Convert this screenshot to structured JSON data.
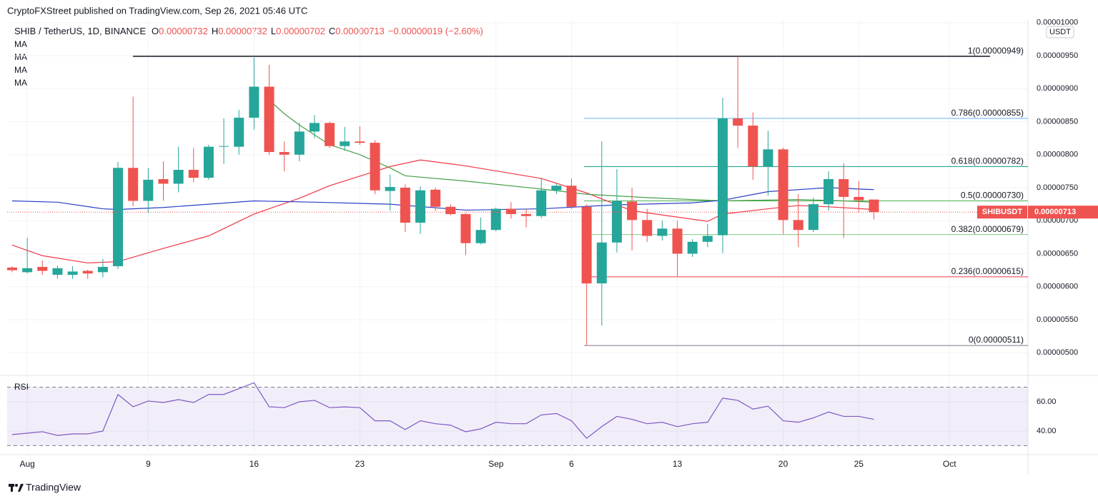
{
  "header": {
    "publisher": "CryptoFXStreet published on TradingView.com, Sep 26, 2021 05:46 UTC",
    "symbol": "SHIB / TetherUS, 1D, BINANCE",
    "ohlc_keys": [
      "O",
      "H",
      "L",
      "C"
    ],
    "change": "−0.00000019 (−2.60%)"
  },
  "indicators": [
    "MA",
    "MA",
    "MA",
    "MA"
  ],
  "chart_data": [
    {
      "type": "candlestick",
      "y_unit": "USDT",
      "symbol_tag": "SHIBUSDT",
      "up_color": "#26a69a",
      "down_color": "#ef5350",
      "grid": true,
      "xlim": [
        -0.33,
        67.19
      ],
      "xticks": [
        {
          "value": 1,
          "label": "Aug"
        },
        9,
        16,
        23,
        {
          "value": 32,
          "label": "Sep"
        },
        {
          "value": 37,
          "label": "6"
        },
        {
          "value": 44,
          "label": "13"
        },
        {
          "value": 51,
          "label": "20"
        },
        {
          "value": 56,
          "label": "25"
        },
        {
          "value": 62,
          "label": "Oct"
        }
      ],
      "ylim": [
        4.7e-06,
        1.004e-05
      ],
      "yticks": [
        {
          "value": 5e-06,
          "label": "0.00000500"
        },
        {
          "value": 5.5e-06,
          "label": "0.00000550"
        },
        {
          "value": 6e-06,
          "label": "0.00000600"
        },
        {
          "value": 6.5e-06,
          "label": "0.00000650"
        },
        {
          "value": 7e-06,
          "label": "0.00000700"
        },
        {
          "value": 7.5e-06,
          "label": "0.00000750"
        },
        {
          "value": 8e-06,
          "label": "0.00000800"
        },
        {
          "value": 8.5e-06,
          "label": "0.00000850"
        },
        {
          "value": 9e-06,
          "label": "0.00000900"
        },
        {
          "value": 9.5e-06,
          "label": "0.00000950"
        },
        {
          "value": 1e-05,
          "label": "0.00001000"
        }
      ],
      "open": [
        6.29e-06,
        6.22e-06,
        6.3e-06,
        6.18e-06,
        6.18e-06,
        6.24e-06,
        6.22e-06,
        6.31e-06,
        7.8e-06,
        7.3e-06,
        7.63e-06,
        7.56e-06,
        7.77e-06,
        7.65e-06,
        8.12e-06,
        8.12e-06,
        8.56e-06,
        9.03e-06,
        8.04e-06,
        8e-06,
        8.35e-06,
        8.48e-06,
        8.13e-06,
        8.2e-06,
        8.18e-06,
        7.45e-06,
        7.5e-06,
        6.97e-06,
        7.47e-06,
        7.21e-06,
        7.1e-06,
        6.66e-06,
        6.86e-06,
        7.18e-06,
        7.1e-06,
        7.07e-06,
        7.46e-06,
        7.53e-06,
        7.21e-06,
        6.05e-06,
        6.67e-06,
        7.29e-06,
        7.01e-06,
        6.77e-06,
        6.88e-06,
        6.5e-06,
        6.68e-06,
        6.78e-06,
        8.55e-06,
        8.44e-06,
        7.82e-06,
        8.08e-06,
        7.01e-06,
        6.86e-06,
        7.25e-06,
        7.63e-06,
        7.36e-06,
        7.32e-06
      ],
      "high": [
        6.31e-06,
        6.74e-06,
        6.4e-06,
        6.32e-06,
        6.31e-06,
        6.26e-06,
        6.42e-06,
        7.89e-06,
        8.88e-06,
        7.8e-06,
        7.9e-06,
        8.12e-06,
        8.1e-06,
        8.15e-06,
        8.55e-06,
        8.68e-06,
        9.47e-06,
        9.36e-06,
        8.2e-06,
        8.48e-06,
        8.6e-06,
        8.5e-06,
        8.42e-06,
        8.43e-06,
        8.22e-06,
        7.7e-06,
        7.55e-06,
        7.52e-06,
        7.5e-06,
        7.25e-06,
        7.12e-06,
        7.05e-06,
        7.2e-06,
        7.28e-06,
        7.18e-06,
        7.65e-06,
        7.56e-06,
        7.64e-06,
        7.25e-06,
        8.2e-06,
        7.78e-06,
        7.5e-06,
        7.18e-06,
        7e-06,
        7e-06,
        6.72e-06,
        6.95e-06,
        8.86e-06,
        9.49e-06,
        8.64e-06,
        8.36e-06,
        8.11e-06,
        7.4e-06,
        7.35e-06,
        7.75e-06,
        7.87e-06,
        7.6e-06,
        7.32e-06
      ],
      "low": [
        6.22e-06,
        6.2e-06,
        6.18e-06,
        6.12e-06,
        6.12e-06,
        6.12e-06,
        6.14e-06,
        6.27e-06,
        7.22e-06,
        7.12e-06,
        7.3e-06,
        7.43e-06,
        7.58e-06,
        7.62e-06,
        7.86e-06,
        8e-06,
        8.38e-06,
        8e-06,
        7.75e-06,
        7.9e-06,
        8.25e-06,
        8.1e-06,
        8.06e-06,
        8.15e-06,
        7.4e-06,
        7.15e-06,
        6.83e-06,
        6.8e-06,
        7.15e-06,
        7.08e-06,
        6.48e-06,
        6.64e-06,
        6.84e-06,
        7.03e-06,
        6.9e-06,
        7.04e-06,
        7.4e-06,
        7.18e-06,
        5.11e-06,
        5.41e-06,
        6.52e-06,
        6.55e-06,
        6.68e-06,
        6.7e-06,
        6.15e-06,
        6.45e-06,
        6.6e-06,
        6.51e-06,
        8.1e-06,
        7.62e-06,
        7.38e-06,
        6.8e-06,
        6.6e-06,
        6.83e-06,
        7.15e-06,
        6.74e-06,
        7.12e-06,
        7.02e-06
      ],
      "close": [
        6.25e-06,
        6.28e-06,
        6.24e-06,
        6.28e-06,
        6.23e-06,
        6.2e-06,
        6.3e-06,
        7.8e-06,
        7.3e-06,
        7.62e-06,
        7.56e-06,
        7.77e-06,
        7.65e-06,
        8.12e-06,
        8.13e-06,
        8.56e-06,
        9.03e-06,
        8.04e-06,
        8e-06,
        8.35e-06,
        8.48e-06,
        8.13e-06,
        8.2e-06,
        8.18e-06,
        7.46e-06,
        7.51e-06,
        6.97e-06,
        7.46e-06,
        7.21e-06,
        7.1e-06,
        6.66e-06,
        6.86e-06,
        7.18e-06,
        7.1e-06,
        7.07e-06,
        7.46e-06,
        7.53e-06,
        7.21e-06,
        6.05e-06,
        6.67e-06,
        7.3e-06,
        7.01e-06,
        6.77e-06,
        6.88e-06,
        6.5e-06,
        6.68e-06,
        6.77e-06,
        8.55e-06,
        8.44e-06,
        7.82e-06,
        8.08e-06,
        7.01e-06,
        6.86e-06,
        7.25e-06,
        7.63e-06,
        7.36e-06,
        7.31e-06,
        7.13e-06
      ],
      "series": [
        {
          "color": "#f23645",
          "x": [
            0,
            2,
            5,
            7,
            10,
            13,
            16,
            19,
            21,
            25,
            27,
            30,
            35,
            38,
            41,
            46,
            47,
            50,
            52,
            54,
            57
          ],
          "values": [
            6.63e-06,
            6.47e-06,
            6.36e-06,
            6.38e-06,
            6.58e-06,
            6.77e-06,
            7.1e-06,
            7.34e-06,
            7.53e-06,
            7.82e-06,
            7.92e-06,
            7.83e-06,
            7.64e-06,
            7.42e-06,
            7.15e-06,
            6.99e-06,
            7.1e-06,
            7.18e-06,
            7.23e-06,
            7.21e-06,
            7.17e-06
          ]
        },
        {
          "color": "#43a047",
          "x": [
            17,
            18,
            19,
            21,
            23,
            25,
            26,
            30,
            35,
            38,
            42,
            47,
            52,
            55,
            57
          ],
          "values": [
            8.83e-06,
            8.62e-06,
            8.45e-06,
            8.15e-06,
            8e-06,
            7.8e-06,
            7.68e-06,
            7.6e-06,
            7.48e-06,
            7.4e-06,
            7.35e-06,
            7.3e-06,
            7.32e-06,
            7.3e-06,
            7.28e-06
          ]
        },
        {
          "color": "#2a3fc4",
          "x": [
            0,
            3,
            6,
            7,
            10,
            16,
            20,
            25,
            30,
            35,
            40,
            45,
            47,
            50,
            54,
            57
          ],
          "values": [
            7.3e-06,
            7.28e-06,
            7.18e-06,
            7.17e-06,
            7.2e-06,
            7.3e-06,
            7.28e-06,
            7.25e-06,
            7.16e-06,
            7.18e-06,
            7.24e-06,
            7.27e-06,
            7.31e-06,
            7.44e-06,
            7.5e-06,
            7.47e-06
          ]
        }
      ],
      "fib_levels": [
        {
          "label": "1(0.00000949)",
          "value": 9.49e-06,
          "color": "#131722"
        },
        {
          "label": "0.786(0.00000855)",
          "value": 8.55e-06,
          "color": "#64b5f6"
        },
        {
          "label": "0.618(0.00000782)",
          "value": 7.82e-06,
          "color": "#089981"
        },
        {
          "label": "0.5(0.00000730)",
          "value": 7.3e-06,
          "color": "#4caf50"
        },
        {
          "label": "0.382(0.00000679)",
          "value": 6.79e-06,
          "color": "#81c784"
        },
        {
          "label": "0.236(0.00000615)",
          "value": 6.15e-06,
          "color": "#f23645"
        },
        {
          "label": "0(0.00000511)",
          "value": 5.11e-06,
          "color": "#787b86"
        }
      ]
    },
    {
      "type": "line",
      "title": "RSI",
      "color": "#7e57c2",
      "band_color": "#7e57c2",
      "ylim": [
        26.3,
        76.1
      ],
      "yticks": [
        {
          "value": 40,
          "label": "40.00"
        },
        {
          "value": 60,
          "label": "60.00"
        }
      ],
      "bands": [
        30,
        70
      ],
      "values": [
        37.6,
        38.5,
        39.5,
        37,
        38,
        38,
        40,
        65,
        56.6,
        60.5,
        59.5,
        61.5,
        59.5,
        65,
        65,
        69,
        73,
        56.6,
        56,
        60,
        61,
        56,
        56.5,
        56,
        47,
        47,
        41,
        47,
        45,
        44,
        39.5,
        41.5,
        46,
        45,
        45,
        51,
        52,
        47,
        35,
        43,
        50,
        48,
        45,
        46,
        43,
        45,
        46,
        62.5,
        61,
        55,
        57,
        47,
        46,
        49,
        53,
        50,
        50,
        48
      ]
    }
  ],
  "footer": "TradingView"
}
